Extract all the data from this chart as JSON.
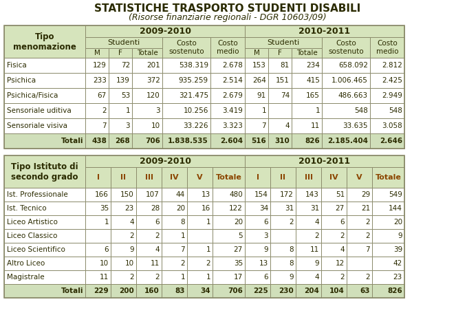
{
  "title": "STATISTICHE TRASPORTO STUDENTI DISABILI",
  "subtitle": "(Risorse finanziarie regionali - DGR 10603/09)",
  "bg_color": "#FFFFFF",
  "header_green": "#D6E4BC",
  "totali_bg": "#D0DFBA",
  "border_color": "#8B8B6B",
  "text_dark": "#2B2B00",
  "text_orange": "#8B4500",
  "table1": {
    "rows": [
      [
        "Fisica",
        "129",
        "72",
        "201",
        "538.319",
        "2.678",
        "153",
        "81",
        "234",
        "658.092",
        "2.812"
      ],
      [
        "Psichica",
        "233",
        "139",
        "372",
        "935.259",
        "2.514",
        "264",
        "151",
        "415",
        "1.006.465",
        "2.425"
      ],
      [
        "Psichica/Fisica",
        "67",
        "53",
        "120",
        "321.475",
        "2.679",
        "91",
        "74",
        "165",
        "486.663",
        "2.949"
      ],
      [
        "Sensoriale uditiva",
        "2",
        "1",
        "3",
        "10.256",
        "3.419",
        "1",
        "",
        "1",
        "548",
        "548"
      ],
      [
        "Sensoriale visiva",
        "7",
        "3",
        "10",
        "33.226",
        "3.323",
        "7",
        "4",
        "11",
        "33.635",
        "3.058"
      ]
    ],
    "totali": [
      "Totali",
      "438",
      "268",
      "706",
      "1.838.535",
      "2.604",
      "516",
      "310",
      "826",
      "2.185.404",
      "2.646"
    ]
  },
  "table2": {
    "rows": [
      [
        "Ist. Professionale",
        "166",
        "150",
        "107",
        "44",
        "13",
        "480",
        "154",
        "172",
        "143",
        "51",
        "29",
        "549"
      ],
      [
        "Ist. Tecnico",
        "35",
        "23",
        "28",
        "20",
        "16",
        "122",
        "34",
        "31",
        "31",
        "27",
        "21",
        "144"
      ],
      [
        "Liceo Artistico",
        "1",
        "4",
        "6",
        "8",
        "1",
        "20",
        "6",
        "2",
        "4",
        "6",
        "2",
        "20"
      ],
      [
        "Liceo Classico",
        "",
        "2",
        "2",
        "1",
        "",
        "5",
        "3",
        "",
        "2",
        "2",
        "2",
        "9"
      ],
      [
        "Liceo Scientifico",
        "6",
        "9",
        "4",
        "7",
        "1",
        "27",
        "9",
        "8",
        "11",
        "4",
        "7",
        "39"
      ],
      [
        "Altro Liceo",
        "10",
        "10",
        "11",
        "2",
        "2",
        "35",
        "13",
        "8",
        "9",
        "12",
        "",
        "42"
      ],
      [
        "Magistrale",
        "11",
        "2",
        "2",
        "1",
        "1",
        "17",
        "6",
        "9",
        "4",
        "2",
        "2",
        "23"
      ]
    ],
    "totali": [
      "Totali",
      "229",
      "200",
      "160",
      "83",
      "34",
      "706",
      "225",
      "230",
      "204",
      "104",
      "63",
      "826"
    ]
  }
}
